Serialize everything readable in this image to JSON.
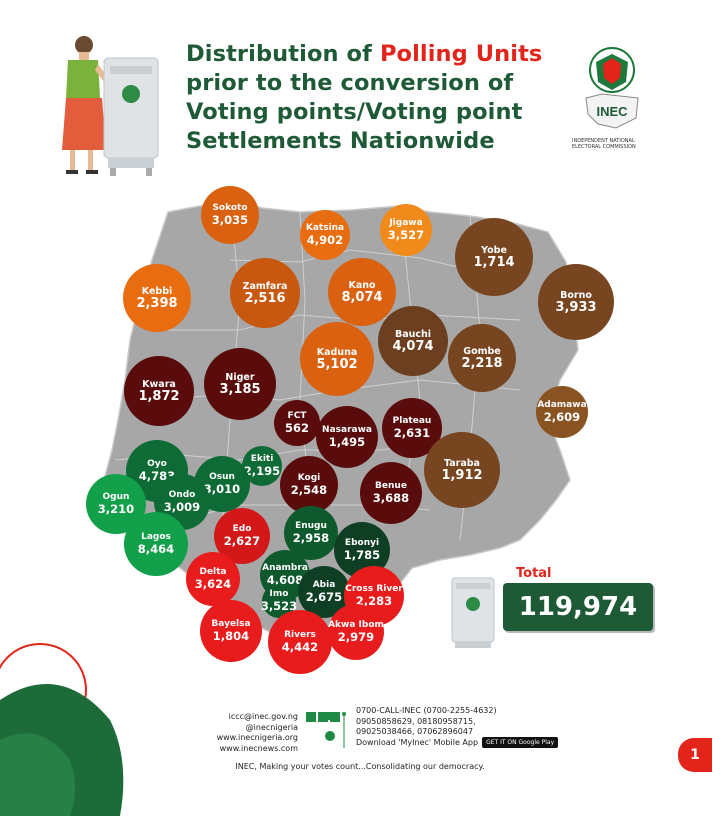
{
  "title": {
    "part1": "Distribution of ",
    "highlight": "Polling Units",
    "line2": "prior to the conversion of",
    "line3": "Voting points/Voting point",
    "line4": "Settlements Nationwide"
  },
  "logo": {
    "text": "INEC",
    "caption": "INDEPENDENT NATIONAL ELECTORAL COMMISSION"
  },
  "states": [
    {
      "name": "Sokoto",
      "value": "3,035",
      "color": "#d9610f"
    },
    {
      "name": "Katsina",
      "value": "4,902",
      "color": "#e86c10"
    },
    {
      "name": "Jigawa",
      "value": "3,527",
      "color": "#f08a1a"
    },
    {
      "name": "Yobe",
      "value": "1,714",
      "color": "#774520"
    },
    {
      "name": "Borno",
      "value": "3,933",
      "color": "#774520"
    },
    {
      "name": "Kebbi",
      "value": "2,398",
      "color": "#e86c10"
    },
    {
      "name": "Zamfara",
      "value": "2,516",
      "color": "#c85710"
    },
    {
      "name": "Kano",
      "value": "8,074",
      "color": "#d9610f"
    },
    {
      "name": "Bauchi",
      "value": "4,074",
      "color": "#6b3f1f"
    },
    {
      "name": "Kaduna",
      "value": "5,102",
      "color": "#d9610f"
    },
    {
      "name": "Gombe",
      "value": "2,218",
      "color": "#774520"
    },
    {
      "name": "Adamawa",
      "value": "2,609",
      "color": "#8a5322"
    },
    {
      "name": "Kwara",
      "value": "1,872",
      "color": "#5a0c0c"
    },
    {
      "name": "Niger",
      "value": "3,185",
      "color": "#5a0c0c"
    },
    {
      "name": "FCT",
      "value": "562",
      "color": "#5a0c0c"
    },
    {
      "name": "Nasarawa",
      "value": "1,495",
      "color": "#5a0c0c"
    },
    {
      "name": "Plateau",
      "value": "2,631",
      "color": "#5a0c0c"
    },
    {
      "name": "Taraba",
      "value": "1,912",
      "color": "#774520"
    },
    {
      "name": "Oyo",
      "value": "4,783",
      "color": "#0e6b35"
    },
    {
      "name": "Ekiti",
      "value": "2,195",
      "color": "#0e6b35"
    },
    {
      "name": "Kogi",
      "value": "2,548",
      "color": "#5a0c0c"
    },
    {
      "name": "Benue",
      "value": "3,688",
      "color": "#5a0c0c"
    },
    {
      "name": "Ogun",
      "value": "3,210",
      "color": "#13a04a"
    },
    {
      "name": "Osun",
      "value": "3,010",
      "color": "#0e6b35"
    },
    {
      "name": "Ondo",
      "value": "3,009",
      "color": "#0e6b35"
    },
    {
      "name": "Lagos",
      "value": "8,464",
      "color": "#13a04a"
    },
    {
      "name": "Edo",
      "value": "2,627",
      "color": "#d21818"
    },
    {
      "name": "Enugu",
      "value": "2,958",
      "color": "#0e5a2c"
    },
    {
      "name": "Ebonyi",
      "value": "1,785",
      "color": "#0e3f24"
    },
    {
      "name": "Delta",
      "value": "3,624",
      "color": "#e81c1c"
    },
    {
      "name": "Anambra",
      "value": "4,608",
      "color": "#0e5a2c"
    },
    {
      "name": "Abia",
      "value": "2,675",
      "color": "#0e3f24"
    },
    {
      "name": "Cross River",
      "value": "2,283",
      "color": "#e81c1c"
    },
    {
      "name": "Imo",
      "value": "3,523",
      "color": "#0e5a2c"
    },
    {
      "name": "Bayelsa",
      "value": "1,804",
      "color": "#e81c1c"
    },
    {
      "name": "Rivers",
      "value": "4,442",
      "color": "#e81c1c"
    },
    {
      "name": "Akwa Ibom",
      "value": "2,979",
      "color": "#e81c1c"
    }
  ],
  "total": {
    "label": "Total",
    "value": "119,974"
  },
  "footer": {
    "email": "iccc@inec.gov.ng",
    "handle": "@inecnigeria",
    "site1": "www.inecnigeria.org",
    "site2": "www.inecnews.com",
    "phone1": "0700-CALL-INEC (0700-2255-4632)",
    "phone2": "09050858629, 08180958715,",
    "phone3": "09025038466, 07062896047",
    "download": "Download 'MyInec' Mobile App",
    "store": "GET IT ON Google Play",
    "tagline": "INEC, Making your votes count...Consolidating our democracy.",
    "page": "1"
  },
  "colors": {
    "green": "#1e5a36",
    "red": "#e3241b",
    "map": "#a7a7a7"
  }
}
